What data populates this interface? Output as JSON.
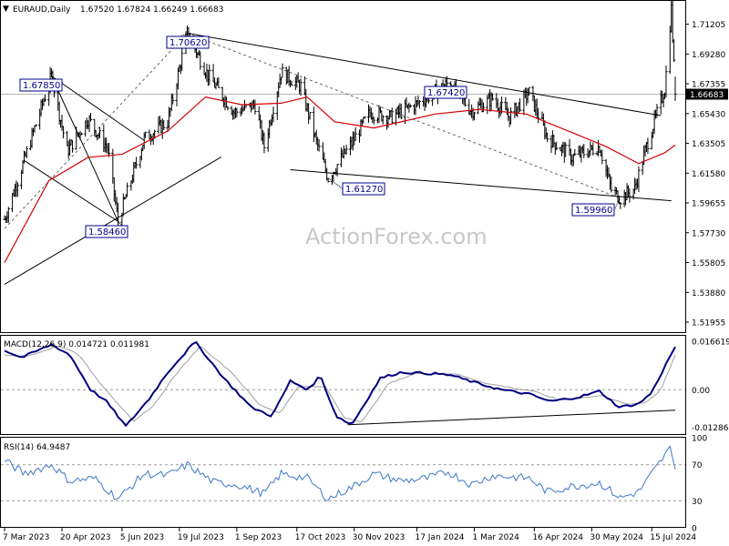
{
  "header": {
    "symbol": "EURAUD,Daily",
    "ohlc": "1.67520 1.67824 1.66249 1.66683",
    "collapse_glyph": "▼"
  },
  "watermark": "ActionForex.com",
  "colors": {
    "bar": "#000000",
    "sma": "#d40000",
    "macd_line": "#000080",
    "macd_signal": "#a0a0a0",
    "rsi": "#3c78c8",
    "trendline": "#000000",
    "dashed": "#646464",
    "grid_dash": "#9a9a9a",
    "current_price": "#b4b4b4",
    "label_border": "#00008b",
    "label_text": "#00008b"
  },
  "chart_data": [
    {
      "type": "ohlc",
      "panel": "price",
      "title": "EURAUD,Daily",
      "ohlc_header": {
        "open": 1.6752,
        "high": 1.67824,
        "low": 1.66249,
        "close": 1.66683
      },
      "xlabels": [
        "7 Mar 2023",
        "20 Apr 2023",
        "5 Jun 2023",
        "19 Jul 2023",
        "1 Sep 2023",
        "17 Oct 2023",
        "30 Nov 2023",
        "17 Jan 2024",
        "1 Mar 2024",
        "16 Apr 2024",
        "30 May 2024",
        "15 Jul 2024"
      ],
      "ytick_labels": [
        "1.71205",
        "1.69280",
        "1.67355",
        "1.65430",
        "1.63505",
        "1.61580",
        "1.59655",
        "1.57730",
        "1.55805",
        "1.53880",
        "1.51955"
      ],
      "ylim": [
        1.5125,
        1.7265
      ],
      "current_price": 1.66683,
      "current_price_label": "1.66683",
      "swing_points": [
        {
          "date": "2023-03-07",
          "close": 1.586
        },
        {
          "date": "2023-03-22",
          "close": 1.624
        },
        {
          "date": "2023-04-12",
          "close": 1.6785
        },
        {
          "date": "2023-04-24",
          "close": 1.63
        },
        {
          "date": "2023-05-10",
          "close": 1.651
        },
        {
          "date": "2023-05-25",
          "close": 1.632
        },
        {
          "date": "2023-06-02",
          "close": 1.5846
        },
        {
          "date": "2023-06-22",
          "close": 1.638
        },
        {
          "date": "2023-07-10",
          "close": 1.649
        },
        {
          "date": "2023-07-25",
          "close": 1.7062
        },
        {
          "date": "2023-08-10",
          "close": 1.679
        },
        {
          "date": "2023-08-30",
          "close": 1.655
        },
        {
          "date": "2023-09-15",
          "close": 1.66
        },
        {
          "date": "2023-09-22",
          "close": 1.633
        },
        {
          "date": "2023-10-05",
          "close": 1.681
        },
        {
          "date": "2023-10-20",
          "close": 1.672
        },
        {
          "date": "2023-11-01",
          "close": 1.636
        },
        {
          "date": "2023-11-10",
          "close": 1.6127
        },
        {
          "date": "2023-11-28",
          "close": 1.635
        },
        {
          "date": "2023-12-12",
          "close": 1.655
        },
        {
          "date": "2023-12-28",
          "close": 1.652
        },
        {
          "date": "2024-01-20",
          "close": 1.662
        },
        {
          "date": "2024-02-10",
          "close": 1.6742
        },
        {
          "date": "2024-02-28",
          "close": 1.656
        },
        {
          "date": "2024-03-15",
          "close": 1.664
        },
        {
          "date": "2024-03-28",
          "close": 1.652
        },
        {
          "date": "2024-04-12",
          "close": 1.668
        },
        {
          "date": "2024-04-26",
          "close": 1.639
        },
        {
          "date": "2024-05-15",
          "close": 1.626
        },
        {
          "date": "2024-06-05",
          "close": 1.633
        },
        {
          "date": "2024-06-14",
          "close": 1.605
        },
        {
          "date": "2024-06-21",
          "close": 1.5996
        },
        {
          "date": "2024-07-02",
          "close": 1.606
        },
        {
          "date": "2024-07-12",
          "close": 1.636
        },
        {
          "date": "2024-07-25",
          "close": 1.67
        },
        {
          "date": "2024-07-30",
          "close": 1.722
        },
        {
          "date": "2024-08-02",
          "close": 1.66683
        }
      ],
      "sma_points": [
        {
          "date": "2023-03-07",
          "value": 1.558
        },
        {
          "date": "2023-04-10",
          "value": 1.611
        },
        {
          "date": "2023-05-10",
          "value": 1.626
        },
        {
          "date": "2023-06-05",
          "value": 1.628
        },
        {
          "date": "2023-07-10",
          "value": 1.643
        },
        {
          "date": "2023-08-08",
          "value": 1.665
        },
        {
          "date": "2023-09-05",
          "value": 1.66
        },
        {
          "date": "2023-10-05",
          "value": 1.661
        },
        {
          "date": "2023-10-25",
          "value": 1.665
        },
        {
          "date": "2023-11-15",
          "value": 1.649
        },
        {
          "date": "2023-12-15",
          "value": 1.645
        },
        {
          "date": "2024-01-31",
          "value": 1.654
        },
        {
          "date": "2024-03-05",
          "value": 1.657
        },
        {
          "date": "2024-04-10",
          "value": 1.654
        },
        {
          "date": "2024-05-15",
          "value": 1.642
        },
        {
          "date": "2024-06-10",
          "value": 1.633
        },
        {
          "date": "2024-07-05",
          "value": 1.622
        },
        {
          "date": "2024-07-25",
          "value": 1.629
        },
        {
          "date": "2024-08-02",
          "value": 1.634
        }
      ],
      "annotations": [
        {
          "text": "1.67850",
          "date": "2023-04-12",
          "price": 1.6785
        },
        {
          "text": "1.58460",
          "date": "2023-06-02",
          "price": 1.5846
        },
        {
          "text": "1.70620",
          "date": "2023-07-25",
          "price": 1.7062
        },
        {
          "text": "1.61270",
          "date": "2023-11-10",
          "price": 1.6127
        },
        {
          "text": "1.67420",
          "date": "2024-02-10",
          "price": 1.6742
        },
        {
          "text": "1.59960",
          "date": "2024-06-21",
          "price": 1.5996
        }
      ],
      "trendlines": [
        {
          "style": "solid",
          "points": [
            [
              "2023-03-07",
              1.544
            ],
            [
              "2023-08-20",
              1.6262
            ]
          ]
        },
        {
          "style": "solid",
          "points": [
            [
              "2023-07-25",
              1.7062
            ],
            [
              "2024-07-22",
              1.653
            ]
          ]
        },
        {
          "style": "solid",
          "points": [
            [
              "2023-10-12",
              1.618
            ],
            [
              "2024-07-30",
              1.598
            ]
          ]
        },
        {
          "style": "solid",
          "points": [
            [
              "2023-04-12",
              1.6785
            ],
            [
              "2023-06-02",
              1.5846
            ]
          ]
        },
        {
          "style": "solid",
          "points": [
            [
              "2023-04-12",
              1.6785
            ],
            [
              "2023-06-22",
              1.637
            ]
          ]
        },
        {
          "style": "solid",
          "points": [
            [
              "2023-03-22",
              1.624
            ],
            [
              "2023-06-02",
              1.5846
            ]
          ]
        },
        {
          "style": "dashed",
          "points": [
            [
              "2023-03-07",
              1.58
            ],
            [
              "2023-07-25",
              1.7062
            ]
          ]
        },
        {
          "style": "dashed",
          "points": [
            [
              "2023-07-25",
              1.7062
            ],
            [
              "2024-06-21",
              1.5996
            ]
          ]
        }
      ]
    },
    {
      "type": "line",
      "panel": "macd",
      "title": "MACD(12,26,9) 0.014721 0.011981",
      "params": "MACD(12,26,9)",
      "values_printed": [
        0.014721,
        0.011981
      ],
      "ytick_labels": [
        "0.016619",
        "0.00",
        "-0.012864"
      ],
      "ylim": [
        -0.0155,
        0.0185
      ],
      "zero_line": 0,
      "series": [
        {
          "role": "macd",
          "points": [
            {
              "date": "2023-03-07",
              "value": 0.0135
            },
            {
              "date": "2023-03-20",
              "value": 0.011
            },
            {
              "date": "2023-04-12",
              "value": 0.0155
            },
            {
              "date": "2023-04-26",
              "value": 0.012
            },
            {
              "date": "2023-05-12",
              "value": 0.0
            },
            {
              "date": "2023-05-24",
              "value": -0.004
            },
            {
              "date": "2023-06-08",
              "value": -0.0125
            },
            {
              "date": "2023-06-26",
              "value": -0.003
            },
            {
              "date": "2023-07-10",
              "value": 0.006
            },
            {
              "date": "2023-07-31",
              "value": 0.0165
            },
            {
              "date": "2023-08-22",
              "value": 0.004
            },
            {
              "date": "2023-09-12",
              "value": -0.006
            },
            {
              "date": "2023-09-28",
              "value": -0.009
            },
            {
              "date": "2023-10-12",
              "value": 0.003
            },
            {
              "date": "2023-10-26",
              "value": 0.0
            },
            {
              "date": "2023-11-04",
              "value": 0.005
            },
            {
              "date": "2023-11-16",
              "value": -0.009
            },
            {
              "date": "2023-11-28",
              "value": -0.012
            },
            {
              "date": "2023-12-20",
              "value": 0.004
            },
            {
              "date": "2024-01-05",
              "value": 0.006
            },
            {
              "date": "2024-01-31",
              "value": 0.0055
            },
            {
              "date": "2024-02-12",
              "value": 0.005
            },
            {
              "date": "2024-03-05",
              "value": 0.002
            },
            {
              "date": "2024-03-22",
              "value": 0.0
            },
            {
              "date": "2024-04-12",
              "value": -0.0015
            },
            {
              "date": "2024-04-28",
              "value": -0.004
            },
            {
              "date": "2024-05-20",
              "value": -0.0025
            },
            {
              "date": "2024-06-05",
              "value": -0.0005
            },
            {
              "date": "2024-06-20",
              "value": -0.006
            },
            {
              "date": "2024-07-05",
              "value": -0.0048
            },
            {
              "date": "2024-07-15",
              "value": -0.001
            },
            {
              "date": "2024-07-25",
              "value": 0.008
            },
            {
              "date": "2024-08-02",
              "value": 0.0147
            }
          ]
        },
        {
          "role": "signal",
          "points": [
            {
              "date": "2023-03-07",
              "value": 0.012
            },
            {
              "date": "2023-03-24",
              "value": 0.0115
            },
            {
              "date": "2023-04-18",
              "value": 0.015
            },
            {
              "date": "2023-05-02",
              "value": 0.0125
            },
            {
              "date": "2023-05-18",
              "value": 0.003
            },
            {
              "date": "2023-06-14",
              "value": -0.011
            },
            {
              "date": "2023-06-30",
              "value": -0.005
            },
            {
              "date": "2023-07-14",
              "value": 0.004
            },
            {
              "date": "2023-08-04",
              "value": 0.015
            },
            {
              "date": "2023-08-28",
              "value": 0.006
            },
            {
              "date": "2023-09-18",
              "value": -0.005
            },
            {
              "date": "2023-10-04",
              "value": -0.008
            },
            {
              "date": "2023-10-18",
              "value": 0.001
            },
            {
              "date": "2023-11-08",
              "value": 0.001
            },
            {
              "date": "2023-11-22",
              "value": -0.0095
            },
            {
              "date": "2023-12-06",
              "value": -0.011
            },
            {
              "date": "2023-12-26",
              "value": 0.002
            },
            {
              "date": "2024-01-15",
              "value": 0.0055
            },
            {
              "date": "2024-02-15",
              "value": 0.0055
            },
            {
              "date": "2024-03-12",
              "value": 0.002
            },
            {
              "date": "2024-04-15",
              "value": -0.0005
            },
            {
              "date": "2024-05-05",
              "value": -0.0035
            },
            {
              "date": "2024-06-08",
              "value": -0.002
            },
            {
              "date": "2024-06-25",
              "value": -0.005
            },
            {
              "date": "2024-07-10",
              "value": -0.0045
            },
            {
              "date": "2024-07-22",
              "value": 0.0
            },
            {
              "date": "2024-08-02",
              "value": 0.012
            }
          ]
        }
      ],
      "trendlines": [
        {
          "style": "solid",
          "points": [
            [
              "2023-11-25",
              -0.012
            ],
            [
              "2024-08-02",
              -0.007
            ]
          ]
        }
      ]
    },
    {
      "type": "line",
      "panel": "rsi",
      "title": "RSI(14) 64.9487",
      "params": "RSI(14)",
      "value_printed": 64.9487,
      "ytick_labels": [
        "100",
        "70",
        "30",
        "0"
      ],
      "ylim": [
        0,
        100
      ],
      "levels": [
        70,
        30
      ],
      "series": [
        {
          "role": "rsi",
          "points": [
            {
              "date": "2023-03-07",
              "value": 75
            },
            {
              "date": "2023-03-22",
              "value": 60
            },
            {
              "date": "2023-04-12",
              "value": 70
            },
            {
              "date": "2023-04-26",
              "value": 52
            },
            {
              "date": "2023-05-15",
              "value": 55
            },
            {
              "date": "2023-06-02",
              "value": 32
            },
            {
              "date": "2023-06-22",
              "value": 60
            },
            {
              "date": "2023-07-10",
              "value": 58
            },
            {
              "date": "2023-07-25",
              "value": 70
            },
            {
              "date": "2023-08-15",
              "value": 50
            },
            {
              "date": "2023-09-01",
              "value": 48
            },
            {
              "date": "2023-09-22",
              "value": 38
            },
            {
              "date": "2023-10-05",
              "value": 60
            },
            {
              "date": "2023-10-25",
              "value": 55
            },
            {
              "date": "2023-11-10",
              "value": 32
            },
            {
              "date": "2023-11-28",
              "value": 45
            },
            {
              "date": "2023-12-15",
              "value": 60
            },
            {
              "date": "2024-01-05",
              "value": 52
            },
            {
              "date": "2024-01-25",
              "value": 55
            },
            {
              "date": "2024-02-10",
              "value": 62
            },
            {
              "date": "2024-02-28",
              "value": 48
            },
            {
              "date": "2024-03-15",
              "value": 58
            },
            {
              "date": "2024-04-12",
              "value": 55
            },
            {
              "date": "2024-04-26",
              "value": 40
            },
            {
              "date": "2024-05-15",
              "value": 46
            },
            {
              "date": "2024-06-05",
              "value": 50
            },
            {
              "date": "2024-06-21",
              "value": 33
            },
            {
              "date": "2024-07-05",
              "value": 40
            },
            {
              "date": "2024-07-20",
              "value": 70
            },
            {
              "date": "2024-07-30",
              "value": 90
            },
            {
              "date": "2024-08-02",
              "value": 65
            }
          ]
        }
      ]
    }
  ]
}
